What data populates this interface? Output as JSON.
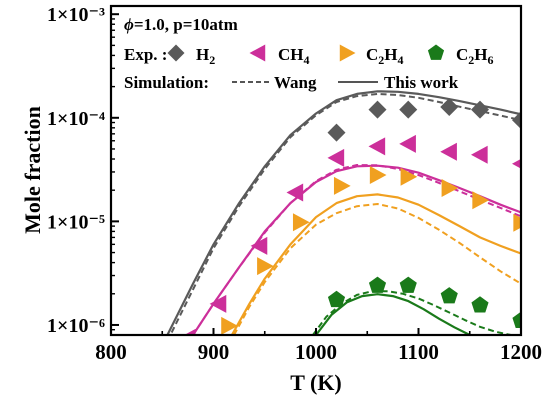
{
  "chart_data": {
    "type": "scatter",
    "condition_label": "=1.0, p=10atm",
    "phi_symbol": "ϕ",
    "xlabel": "T (K)",
    "ylabel": "Mole fraction",
    "xlim": [
      800,
      1200
    ],
    "ylim": [
      8e-07,
      0.0012
    ],
    "yscale": "log",
    "x_ticks": [
      800,
      900,
      1000,
      1100,
      1200
    ],
    "y_ticks": [
      {
        "value": 1e-06,
        "label": "1×10⁻⁶"
      },
      {
        "value": 1e-05,
        "label": "1×10⁻⁵"
      },
      {
        "value": 0.0001,
        "label": "1×10⁻⁴"
      },
      {
        "value": 0.001,
        "label": "1×10⁻³"
      }
    ],
    "legend": {
      "exp_title": "Exp. :",
      "sim_title": "Simulation:",
      "sim_styles": [
        {
          "label": "Wang",
          "dash": true
        },
        {
          "label": "This work",
          "dash": false
        }
      ]
    },
    "series": [
      {
        "name": "H2",
        "legend_base": "H",
        "legend_sub": "2",
        "legend_rest": "",
        "legend_sub2": "",
        "color": "#5a5a5a",
        "marker": "diamond",
        "exp_x": [
          1020,
          1060,
          1090,
          1130,
          1160,
          1200
        ],
        "exp_y": [
          7.2e-05,
          0.00012,
          0.00012,
          0.000127,
          0.00012,
          9.5e-05
        ],
        "this_work": {
          "x": [
            855,
            880,
            900,
            925,
            950,
            975,
            1000,
            1020,
            1040,
            1060,
            1080,
            1100,
            1120,
            1140,
            1160,
            1180,
            1200
          ],
          "y": [
            8e-07,
            2.5e-06,
            6e-06,
            1.5e-05,
            3.4e-05,
            6.8e-05,
            0.00011,
            0.000148,
            0.00017,
            0.00018,
            0.000178,
            0.00017,
            0.000158,
            0.000145,
            0.000132,
            0.00012,
            0.000108
          ]
        },
        "wang": {
          "x": [
            855,
            880,
            900,
            925,
            950,
            975,
            1000,
            1020,
            1040,
            1060,
            1080,
            1100,
            1120,
            1140,
            1160,
            1180,
            1200
          ],
          "y": [
            7e-07,
            2.2e-06,
            5.5e-06,
            1.4e-05,
            3.2e-05,
            6.5e-05,
            0.000106,
            0.000142,
            0.000162,
            0.00017,
            0.000166,
            0.000156,
            0.000142,
            0.000128,
            0.000116,
            0.000105,
            9.5e-05
          ]
        }
      },
      {
        "name": "CH4",
        "legend_base": "CH",
        "legend_sub": "4",
        "legend_rest": "",
        "legend_sub2": "",
        "color": "#cc2f9a",
        "marker": "triangle-left",
        "exp_x": [
          875,
          905,
          945,
          980,
          1020,
          1060,
          1090,
          1130,
          1160,
          1200
        ],
        "exp_y": [
          7.5e-07,
          1.6e-06,
          5.8e-06,
          1.9e-05,
          4.1e-05,
          5.3e-05,
          5.6e-05,
          4.7e-05,
          4.4e-05,
          3.6e-05
        ],
        "this_work": {
          "x": [
            880,
            900,
            925,
            950,
            975,
            1000,
            1020,
            1040,
            1060,
            1080,
            1100,
            1120,
            1140,
            1160,
            1180,
            1200
          ],
          "y": [
            8e-07,
            1.6e-06,
            3.6e-06,
            8e-06,
            1.5e-05,
            2.4e-05,
            3.05e-05,
            3.4e-05,
            3.45e-05,
            3.3e-05,
            2.95e-05,
            2.5e-05,
            2.1e-05,
            1.75e-05,
            1.45e-05,
            1.22e-05
          ]
        },
        "wang": {
          "x": [
            880,
            900,
            925,
            950,
            975,
            1000,
            1020,
            1040,
            1060,
            1080,
            1100,
            1120,
            1140,
            1160,
            1180,
            1200
          ],
          "y": [
            8e-07,
            1.6e-06,
            3.6e-06,
            7.8e-06,
            1.5e-05,
            2.45e-05,
            3.15e-05,
            3.5e-05,
            3.48e-05,
            3.2e-05,
            2.8e-05,
            2.35e-05,
            1.95e-05,
            1.62e-05,
            1.35e-05,
            1.12e-05
          ]
        }
      },
      {
        "name": "C2H4",
        "legend_base": "C",
        "legend_sub": "2",
        "legend_rest": "H",
        "legend_sub2": "4",
        "color": "#f0a020",
        "marker": "triangle-right",
        "exp_x": [
          915,
          950,
          985,
          1025,
          1060,
          1090,
          1130,
          1160,
          1200
        ],
        "exp_y": [
          9.8e-07,
          3.7e-06,
          9.8e-06,
          2.2e-05,
          2.8e-05,
          2.7e-05,
          2.1e-05,
          1.6e-05,
          9.7e-06
        ],
        "this_work": {
          "x": [
            918,
            935,
            950,
            975,
            1000,
            1020,
            1040,
            1060,
            1080,
            1100,
            1120,
            1140,
            1160,
            1180,
            1200
          ],
          "y": [
            8e-07,
            1.6e-06,
            2.8e-06,
            6e-06,
            1.1e-05,
            1.5e-05,
            1.75e-05,
            1.82e-05,
            1.7e-05,
            1.45e-05,
            1.15e-05,
            9e-06,
            7e-06,
            5.8e-06,
            4.9e-06
          ]
        },
        "wang": {
          "x": [
            920,
            935,
            950,
            975,
            1000,
            1020,
            1040,
            1060,
            1080,
            1100,
            1120,
            1140,
            1160,
            1180,
            1200
          ],
          "y": [
            8e-07,
            1.5e-06,
            2.6e-06,
            5.5e-06,
            9.3e-06,
            1.2e-05,
            1.4e-05,
            1.47e-05,
            1.33e-05,
            1.08e-05,
            8.3e-06,
            6.2e-06,
            4.5e-06,
            3.3e-06,
            2.5e-06
          ]
        }
      },
      {
        "name": "C2H6",
        "legend_base": "C",
        "legend_sub": "2",
        "legend_rest": "H",
        "legend_sub2": "6",
        "color": "#1a7a1a",
        "marker": "pentagon",
        "exp_x": [
          1020,
          1060,
          1090,
          1130,
          1160,
          1200
        ],
        "exp_y": [
          1.75e-06,
          2.4e-06,
          2.4e-06,
          1.9e-06,
          1.55e-06,
          1.1e-06
        ],
        "this_work": {
          "x": [
            1000,
            1015,
            1030,
            1045,
            1060,
            1075,
            1090,
            1105,
            1120,
            1135,
            1150
          ],
          "y": [
            8e-07,
            1.25e-06,
            1.65e-06,
            1.9e-06,
            1.98e-06,
            1.9e-06,
            1.7e-06,
            1.42e-06,
            1.15e-06,
            9.5e-07,
            8e-07
          ]
        },
        "wang": {
          "x": [
            997,
            1010,
            1025,
            1040,
            1055,
            1070,
            1085,
            1100,
            1115,
            1130,
            1145,
            1160,
            1175,
            1190
          ],
          "y": [
            8e-07,
            1.2e-06,
            1.6e-06,
            1.95e-06,
            2.12e-06,
            2.12e-06,
            2e-06,
            1.8e-06,
            1.55e-06,
            1.32e-06,
            1.12e-06,
            9.6e-07,
            8.6e-07,
            8e-07
          ]
        }
      }
    ]
  }
}
